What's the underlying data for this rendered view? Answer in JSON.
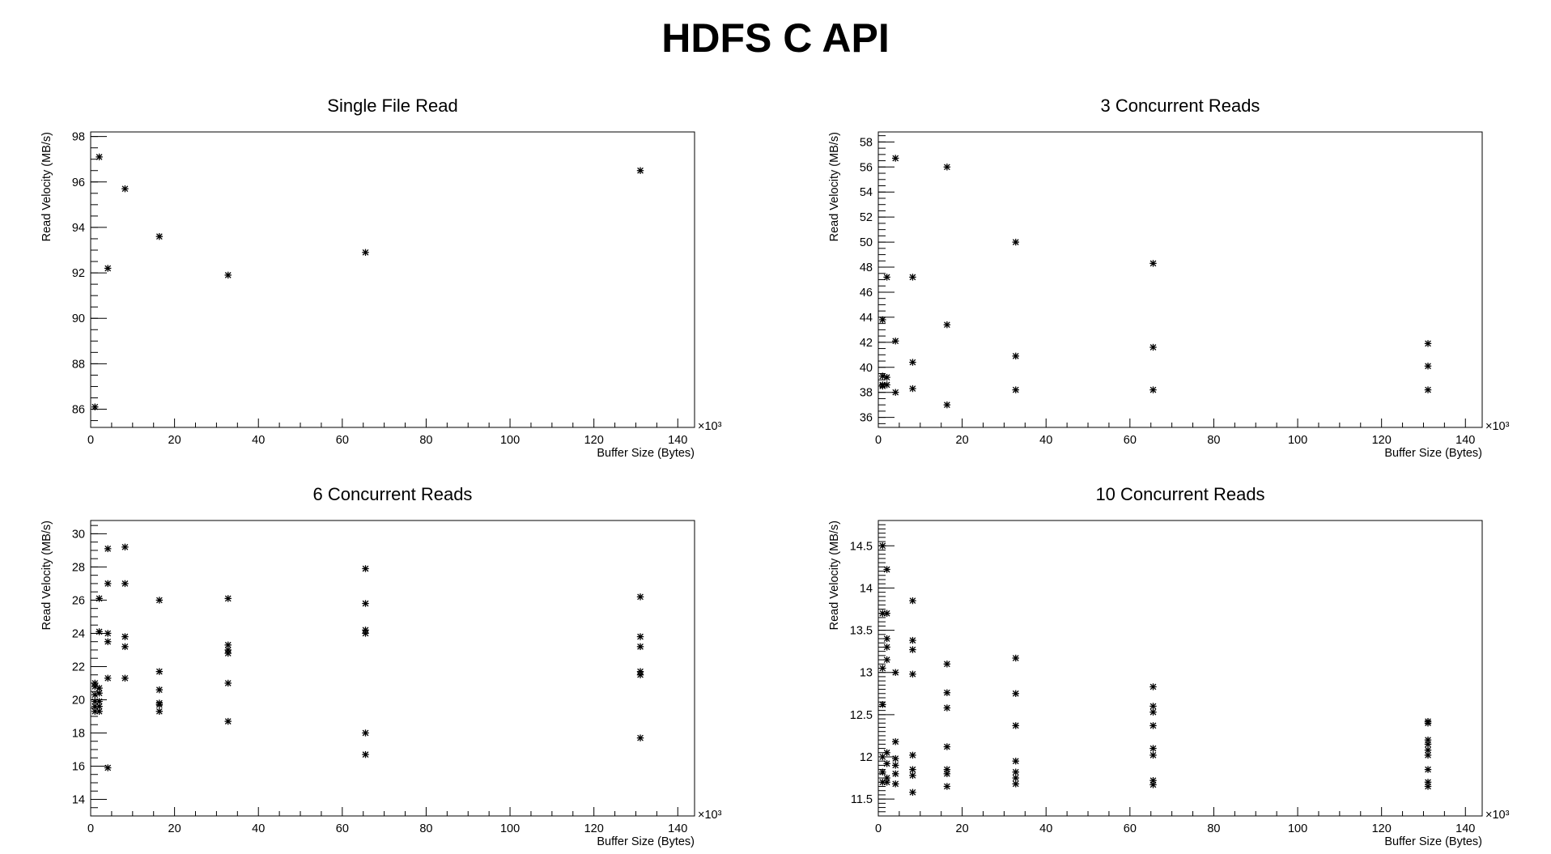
{
  "title": "HDFS C API",
  "chart_data": [
    {
      "type": "scatter",
      "title": "Single File Read",
      "xlabel": "Buffer Size (Bytes)",
      "ylabel": "Read Velocity (MB/s)",
      "x_multiplier_label": "×10³",
      "xlim": [
        0,
        144
      ],
      "ylim": [
        85.2,
        98.2
      ],
      "xticks": [
        0,
        20,
        40,
        60,
        80,
        100,
        120,
        140
      ],
      "xtick_labels": [
        "0",
        "20",
        "40",
        "60",
        "80",
        "100",
        "120",
        "140"
      ],
      "yticks": [
        86,
        88,
        90,
        92,
        94,
        96,
        98
      ],
      "ytick_labels": [
        "86",
        "88",
        "90",
        "92",
        "94",
        "96",
        "98"
      ],
      "yminor": 0.5,
      "x": [
        1.024,
        2.048,
        4.096,
        8.192,
        16.384,
        32.768,
        65.536,
        131.072
      ],
      "y": [
        86.1,
        97.1,
        92.2,
        95.7,
        93.6,
        91.9,
        92.9,
        96.5
      ]
    },
    {
      "type": "scatter",
      "title": "3 Concurrent Reads",
      "xlabel": "Buffer Size (Bytes)",
      "ylabel": "Read Velocity (MB/s)",
      "x_multiplier_label": "×10³",
      "xlim": [
        0,
        144
      ],
      "ylim": [
        35.2,
        58.8
      ],
      "xticks": [
        0,
        20,
        40,
        60,
        80,
        100,
        120,
        140
      ],
      "xtick_labels": [
        "0",
        "20",
        "40",
        "60",
        "80",
        "100",
        "120",
        "140"
      ],
      "yticks": [
        36,
        38,
        40,
        42,
        44,
        46,
        48,
        50,
        52,
        54,
        56,
        58
      ],
      "ytick_labels": [
        "36",
        "38",
        "40",
        "42",
        "44",
        "46",
        "48",
        "50",
        "52",
        "54",
        "56",
        "58"
      ],
      "yminor": 0.5,
      "x": [
        1.024,
        1.024,
        1.024,
        1.024,
        2.048,
        2.048,
        2.048,
        4.096,
        4.096,
        4.096,
        8.192,
        8.192,
        8.192,
        16.384,
        16.384,
        16.384,
        32.768,
        32.768,
        32.768,
        65.536,
        65.536,
        65.536,
        131.072,
        131.072,
        131.072
      ],
      "y": [
        43.8,
        39.3,
        38.6,
        38.5,
        47.2,
        39.2,
        38.6,
        56.7,
        42.1,
        38.0,
        47.2,
        40.4,
        38.3,
        56.0,
        43.4,
        37.0,
        50.0,
        40.9,
        38.2,
        48.3,
        41.6,
        38.2,
        41.9,
        40.1,
        38.2
      ]
    },
    {
      "type": "scatter",
      "title": "6 Concurrent Reads",
      "xlabel": "Buffer Size (Bytes)",
      "ylabel": "Read Velocity (MB/s)",
      "x_multiplier_label": "×10³",
      "xlim": [
        0,
        144
      ],
      "ylim": [
        13,
        30.8
      ],
      "xticks": [
        0,
        20,
        40,
        60,
        80,
        100,
        120,
        140
      ],
      "xtick_labels": [
        "0",
        "20",
        "40",
        "60",
        "80",
        "100",
        "120",
        "140"
      ],
      "yticks": [
        14,
        16,
        18,
        20,
        22,
        24,
        26,
        28,
        30
      ],
      "ytick_labels": [
        "14",
        "16",
        "18",
        "20",
        "22",
        "24",
        "26",
        "28",
        "30"
      ],
      "yminor": 0.5,
      "x": [
        1.024,
        1.024,
        1.024,
        1.024,
        1.024,
        1.024,
        2.048,
        2.048,
        2.048,
        2.048,
        2.048,
        2.048,
        2.048,
        4.096,
        4.096,
        4.096,
        4.096,
        4.096,
        4.096,
        8.192,
        8.192,
        8.192,
        8.192,
        8.192,
        16.384,
        16.384,
        16.384,
        16.384,
        16.384,
        16.384,
        32.768,
        32.768,
        32.768,
        32.768,
        32.768,
        32.768,
        65.536,
        65.536,
        65.536,
        65.536,
        65.536,
        65.536,
        131.072,
        131.072,
        131.072,
        131.072,
        131.072,
        131.072
      ],
      "y": [
        21.0,
        20.8,
        20.3,
        19.9,
        19.6,
        19.3,
        26.1,
        24.1,
        20.7,
        20.4,
        19.9,
        19.6,
        19.3,
        29.1,
        27.0,
        24.0,
        23.5,
        21.3,
        15.9,
        29.2,
        27.0,
        23.8,
        23.2,
        21.3,
        26.0,
        21.7,
        20.6,
        19.8,
        19.7,
        19.3,
        26.1,
        23.3,
        23.0,
        22.8,
        21.0,
        18.7,
        27.9,
        25.8,
        24.2,
        24.0,
        18.0,
        16.7,
        26.2,
        23.8,
        23.2,
        21.7,
        21.5,
        17.7
      ]
    },
    {
      "type": "scatter",
      "title": "10 Concurrent Reads",
      "xlabel": "Buffer Size (Bytes)",
      "ylabel": "Read Velocity (MB/s)",
      "x_multiplier_label": "×10³",
      "xlim": [
        0,
        144
      ],
      "ylim": [
        11.3,
        14.8
      ],
      "xticks": [
        0,
        20,
        40,
        60,
        80,
        100,
        120,
        140
      ],
      "xtick_labels": [
        "0",
        "20",
        "40",
        "60",
        "80",
        "100",
        "120",
        "140"
      ],
      "yticks": [
        11.5,
        12,
        12.5,
        13,
        13.5,
        14,
        14.5
      ],
      "ytick_labels": [
        "11.5",
        "12",
        "12.5",
        "13",
        "13.5",
        "14",
        "14.5"
      ],
      "yminor": 0.05,
      "x": [
        1.024,
        1.024,
        1.024,
        1.024,
        1.024,
        1.024,
        1.024,
        2.048,
        2.048,
        2.048,
        2.048,
        2.048,
        2.048,
        2.048,
        2.048,
        2.048,
        4.096,
        4.096,
        4.096,
        4.096,
        4.096,
        4.096,
        8.192,
        8.192,
        8.192,
        8.192,
        8.192,
        8.192,
        8.192,
        8.192,
        16.384,
        16.384,
        16.384,
        16.384,
        16.384,
        16.384,
        16.384,
        32.768,
        32.768,
        32.768,
        32.768,
        32.768,
        32.768,
        32.768,
        65.536,
        65.536,
        65.536,
        65.536,
        65.536,
        65.536,
        65.536,
        65.536,
        131.072,
        131.072,
        131.072,
        131.072,
        131.072,
        131.072,
        131.072,
        131.072,
        131.072
      ],
      "y": [
        14.5,
        13.7,
        13.05,
        12.62,
        12.0,
        11.82,
        11.7,
        14.22,
        13.7,
        13.4,
        13.3,
        13.15,
        12.05,
        11.92,
        11.75,
        11.7,
        13.0,
        12.18,
        11.98,
        11.9,
        11.8,
        11.68,
        13.85,
        13.38,
        13.27,
        12.98,
        12.02,
        11.85,
        11.78,
        11.58,
        13.1,
        12.76,
        12.58,
        12.12,
        11.85,
        11.8,
        11.65,
        13.17,
        12.75,
        12.37,
        11.95,
        11.82,
        11.75,
        11.68,
        12.83,
        12.6,
        12.53,
        12.37,
        12.1,
        12.02,
        11.72,
        11.67,
        12.42,
        12.4,
        12.2,
        12.15,
        12.08,
        12.02,
        11.85,
        11.7,
        11.65
      ]
    }
  ]
}
